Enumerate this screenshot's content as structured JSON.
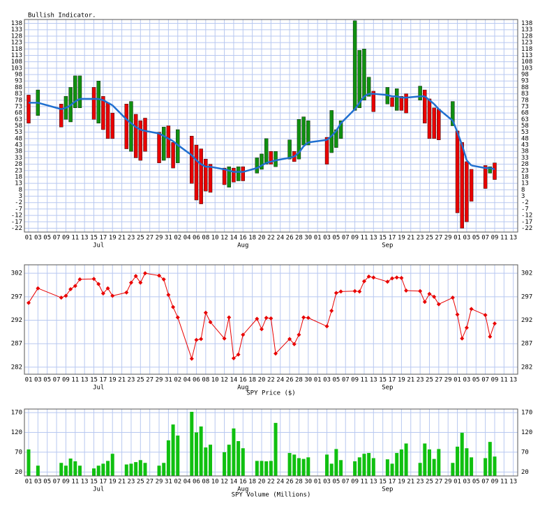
{
  "chart_data": [
    {
      "type": "range",
      "title": "Bullish Indicator.",
      "categories": [
        "01",
        null,
        "03",
        null,
        "05",
        null,
        "07",
        null,
        "09",
        null,
        "11",
        null,
        "13",
        null,
        "15",
        null,
        "17",
        null,
        "19",
        null,
        "21",
        null,
        "23",
        null,
        "25",
        null,
        "27",
        null,
        "29",
        null,
        "31",
        null,
        "02",
        null,
        "04",
        null,
        "06",
        null,
        "08",
        null,
        "10",
        null,
        "12",
        null,
        "14",
        null,
        "16",
        null,
        "18",
        null,
        "20",
        null,
        "22",
        null,
        "24",
        null,
        "26",
        null,
        "28",
        null,
        "30",
        null,
        "01",
        null,
        "03",
        null,
        "05",
        null,
        "07",
        null,
        "09",
        null,
        "11",
        null,
        "13",
        null,
        "15",
        null,
        "17",
        null,
        "19",
        null,
        "21",
        null,
        "23",
        null,
        "25",
        null,
        "27",
        null,
        "29",
        null,
        "01",
        null,
        "03",
        null,
        "05",
        null,
        "07",
        null,
        "09",
        null,
        "11",
        null,
        "13",
        null
      ],
      "month_labels": [
        null,
        null,
        null,
        null,
        null,
        null,
        null,
        null,
        null,
        null,
        null,
        null,
        null,
        null,
        null,
        "Jul",
        null,
        null,
        null,
        null,
        null,
        null,
        null,
        null,
        null,
        null,
        null,
        null,
        null,
        null,
        null,
        null,
        null,
        null,
        null,
        null,
        null,
        null,
        null,
        null,
        null,
        null,
        null,
        null,
        null,
        null,
        "Aug",
        null,
        null,
        null,
        null,
        null,
        null,
        null,
        null,
        null,
        null,
        null,
        null,
        null,
        null,
        null,
        null,
        null,
        null,
        null,
        null,
        null,
        null,
        null,
        null,
        null,
        null,
        null,
        null,
        null,
        null,
        "Sep",
        null,
        null,
        null,
        null,
        null,
        null,
        null,
        null,
        null,
        null,
        null,
        null,
        null,
        null,
        null,
        null,
        null,
        null,
        null,
        null,
        null,
        null,
        null,
        null,
        null,
        null,
        null,
        null
      ],
      "open": [
        82,
        null,
        66,
        null,
        null,
        null,
        null,
        75,
        63,
        61,
        72,
        72,
        null,
        null,
        88,
        60,
        81,
        76,
        68,
        null,
        null,
        75,
        38,
        67,
        62,
        64,
        null,
        null,
        53,
        31,
        58,
        45,
        29,
        null,
        null,
        50,
        43,
        40,
        32,
        28,
        null,
        null,
        25,
        10,
        25,
        15,
        26,
        null,
        null,
        21,
        24,
        28,
        38,
        26,
        null,
        null,
        32,
        38,
        32,
        43,
        43,
        null,
        null,
        null,
        49,
        37,
        41,
        48,
        null,
        null,
        70,
        72,
        78,
        81,
        85,
        null,
        null,
        75,
        80,
        70,
        81,
        83,
        null,
        null,
        78,
        86,
        79,
        72,
        71,
        null,
        null,
        58,
        54,
        45,
        30,
        24,
        null,
        null,
        27,
        21,
        29,
        null,
        null,
        null,
        null,
        null
      ],
      "close": [
        60,
        null,
        86,
        null,
        null,
        null,
        null,
        57,
        81,
        88,
        97,
        97,
        null,
        null,
        63,
        93,
        55,
        48,
        48,
        null,
        null,
        40,
        77,
        33,
        31,
        38,
        null,
        null,
        29,
        57,
        33,
        25,
        55,
        null,
        null,
        13,
        0,
        -3,
        7,
        6,
        null,
        null,
        12,
        26,
        14,
        26,
        15,
        null,
        null,
        33,
        36,
        48,
        28,
        38,
        null,
        null,
        47,
        30,
        63,
        65,
        62,
        null,
        null,
        null,
        28,
        70,
        55,
        62,
        null,
        null,
        140,
        117,
        118,
        96,
        69,
        null,
        null,
        88,
        73,
        87,
        70,
        68,
        null,
        null,
        89,
        60,
        48,
        48,
        47,
        null,
        null,
        77,
        -10,
        -22,
        -17,
        -1,
        null,
        null,
        9,
        26,
        16,
        null,
        null,
        null,
        null,
        null
      ],
      "average": [
        76,
        null,
        76,
        null,
        null,
        null,
        null,
        71,
        72,
        74,
        77,
        79,
        null,
        null,
        79,
        79,
        78,
        76,
        74,
        null,
        null,
        63,
        60,
        57,
        55,
        54,
        null,
        null,
        52,
        50,
        48,
        46,
        43,
        null,
        null,
        35,
        31,
        28,
        26,
        26,
        null,
        null,
        24,
        23,
        22,
        22,
        22,
        null,
        null,
        25,
        27,
        29,
        30,
        31,
        null,
        null,
        33,
        34,
        37,
        42,
        45,
        null,
        null,
        null,
        47,
        50,
        54,
        60,
        null,
        null,
        71,
        76,
        81,
        83,
        83,
        null,
        null,
        82,
        81,
        81,
        80,
        80,
        null,
        null,
        81,
        81,
        78,
        75,
        71,
        null,
        null,
        62,
        53,
        43,
        31,
        27,
        null,
        null,
        25,
        25,
        24,
        null,
        null,
        null,
        null,
        null
      ],
      "up_color": "#109010",
      "down_color": "#e80000",
      "average_color": "#1f6fd0",
      "ylim": [
        -25,
        141
      ],
      "yticks": [
        138,
        133,
        128,
        123,
        118,
        113,
        108,
        103,
        98,
        93,
        88,
        83,
        78,
        73,
        68,
        63,
        58,
        53,
        48,
        43,
        38,
        33,
        28,
        23,
        18,
        13,
        8,
        3,
        -2,
        -7,
        -12,
        -17,
        -22
      ],
      "grid": true
    },
    {
      "type": "line",
      "xlabel": "SPY Price ($)",
      "values": [
        295.7,
        null,
        298.8,
        null,
        null,
        null,
        null,
        296.8,
        297.2,
        298.6,
        299.3,
        300.7,
        null,
        null,
        300.8,
        299.7,
        297.7,
        298.8,
        297.2,
        null,
        null,
        297.9,
        300.0,
        301.4,
        300.0,
        302.0,
        null,
        null,
        301.5,
        300.7,
        297.4,
        294.8,
        292.6,
        null,
        null,
        283.8,
        287.8,
        288.0,
        293.6,
        291.6,
        null,
        null,
        288.1,
        292.6,
        283.9,
        284.7,
        288.9,
        null,
        null,
        292.3,
        290.1,
        292.5,
        292.4,
        284.9,
        null,
        null,
        288.0,
        286.9,
        288.9,
        292.6,
        292.5,
        null,
        null,
        null,
        290.7,
        294.0,
        297.8,
        298.1,
        null,
        null,
        298.2,
        298.1,
        300.3,
        301.3,
        301.1,
        null,
        null,
        300.2,
        300.9,
        301.1,
        301.0,
        298.3,
        null,
        null,
        298.2,
        295.9,
        297.6,
        297.0,
        295.4,
        null,
        null,
        296.8,
        293.2,
        288.1,
        290.4,
        294.4,
        null,
        null,
        293.1,
        288.5,
        291.3,
        null,
        null,
        null,
        null,
        null
      ],
      "color": "#e80000",
      "ylim": [
        280.5,
        303.8
      ],
      "yticks": [
        302,
        297,
        292,
        287,
        282
      ],
      "grid": true
    },
    {
      "type": "bar",
      "xlabel": "SPY Volume (Millions)",
      "values": [
        77,
        null,
        36,
        null,
        null,
        null,
        null,
        43,
        36,
        54,
        47,
        36,
        null,
        null,
        29,
        36,
        41,
        48,
        66,
        null,
        null,
        39,
        41,
        45,
        50,
        43,
        null,
        null,
        36,
        43,
        100,
        140,
        112,
        null,
        null,
        172,
        120,
        135,
        82,
        89,
        null,
        null,
        70,
        89,
        130,
        98,
        80,
        null,
        null,
        48,
        48,
        47,
        48,
        144,
        null,
        null,
        68,
        64,
        55,
        53,
        57,
        null,
        null,
        null,
        64,
        41,
        78,
        50,
        null,
        null,
        47,
        57,
        66,
        68,
        55,
        null,
        null,
        52,
        41,
        68,
        77,
        92,
        null,
        null,
        43,
        92,
        77,
        53,
        78,
        null,
        null,
        43,
        84,
        119,
        80,
        57,
        null,
        null,
        55,
        96,
        59,
        null,
        null,
        null,
        null,
        null
      ],
      "color": "#10c010",
      "ylim": [
        10,
        179
      ],
      "yticks": [
        170,
        120,
        70,
        20
      ],
      "grid": true
    }
  ]
}
